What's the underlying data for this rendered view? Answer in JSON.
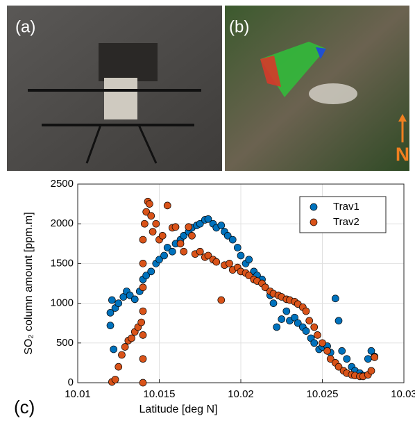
{
  "panels": {
    "a_label": "(a)",
    "b_label": "(b)",
    "north_label": "N",
    "c_label": "(c)"
  },
  "chart_data": {
    "type": "scatter",
    "x_label": "Latitude [deg N]",
    "y_label": "SO₂ column amount [ppm.m]",
    "xlim": [
      10.01,
      10.03
    ],
    "xticks": [
      10.01,
      10.015,
      10.02,
      10.025,
      10.03
    ],
    "ylim": [
      0,
      2500
    ],
    "yticks": [
      0,
      500,
      1000,
      1500,
      2000,
      2500
    ],
    "grid": true,
    "legend": "upper-right",
    "series": [
      {
        "name": "Trav1",
        "color": "#0072bd",
        "x": [
          10.012,
          10.012,
          10.0121,
          10.0122,
          10.0123,
          10.0125,
          10.0128,
          10.013,
          10.0132,
          10.0135,
          10.0138,
          10.014,
          10.0142,
          10.0145,
          10.0148,
          10.015,
          10.0153,
          10.0155,
          10.0158,
          10.016,
          10.0163,
          10.0165,
          10.0168,
          10.017,
          10.0173,
          10.0175,
          10.0178,
          10.018,
          10.0183,
          10.0185,
          10.0188,
          10.019,
          10.0192,
          10.0195,
          10.0198,
          10.02,
          10.0203,
          10.0205,
          10.0208,
          10.021,
          10.0213,
          10.0215,
          10.0218,
          10.022,
          10.0222,
          10.0225,
          10.0228,
          10.023,
          10.0233,
          10.0235,
          10.0238,
          10.024,
          10.0243,
          10.0245,
          10.0248,
          10.025,
          10.0253,
          10.0255,
          10.0258,
          10.026,
          10.0262,
          10.0265,
          10.0268,
          10.027,
          10.0273,
          10.0275,
          10.0278,
          10.028,
          10.0282
        ],
        "values": [
          720,
          880,
          1040,
          420,
          940,
          1000,
          1080,
          1150,
          1100,
          1050,
          1150,
          1300,
          1350,
          1400,
          1500,
          1550,
          1600,
          1700,
          1650,
          1750,
          1800,
          1850,
          1900,
          1950,
          1980,
          2000,
          2050,
          2060,
          2000,
          1950,
          1980,
          1900,
          1850,
          1800,
          1700,
          1600,
          1500,
          1550,
          1400,
          1350,
          1300,
          1200,
          1100,
          1000,
          700,
          800,
          900,
          780,
          820,
          750,
          700,
          650,
          560,
          500,
          420,
          450,
          460,
          380,
          1060,
          780,
          400,
          300,
          200,
          150,
          120,
          90,
          300,
          400,
          330
        ]
      },
      {
        "name": "Trav2",
        "color": "#d95319",
        "x": [
          10.0121,
          10.0123,
          10.0125,
          10.0127,
          10.0129,
          10.0131,
          10.0133,
          10.0135,
          10.0137,
          10.0139,
          10.014,
          10.014,
          10.014,
          10.014,
          10.014,
          10.014,
          10.014,
          10.0141,
          10.0142,
          10.0143,
          10.0144,
          10.0145,
          10.0146,
          10.0148,
          10.015,
          10.0152,
          10.0155,
          10.0158,
          10.016,
          10.0163,
          10.0165,
          10.0168,
          10.017,
          10.0172,
          10.0175,
          10.0178,
          10.018,
          10.0183,
          10.0185,
          10.0188,
          10.019,
          10.0193,
          10.0195,
          10.0198,
          10.02,
          10.0203,
          10.0205,
          10.0208,
          10.021,
          10.0213,
          10.0215,
          10.0218,
          10.022,
          10.0223,
          10.0225,
          10.0228,
          10.023,
          10.0233,
          10.0235,
          10.0238,
          10.024,
          10.0242,
          10.0245,
          10.0247,
          10.025,
          10.0253,
          10.0255,
          10.0258,
          10.026,
          10.0263,
          10.0265,
          10.0268,
          10.027,
          10.0273,
          10.0275,
          10.0278,
          10.028,
          10.0282
        ],
        "values": [
          10,
          40,
          200,
          350,
          450,
          530,
          560,
          640,
          700,
          760,
          0,
          300,
          600,
          900,
          1200,
          1500,
          1800,
          2000,
          2150,
          2280,
          2250,
          2100,
          1900,
          2000,
          1800,
          1850,
          2230,
          1950,
          1960,
          1750,
          1650,
          1960,
          1850,
          1620,
          1650,
          1580,
          1600,
          1550,
          1520,
          1040,
          1480,
          1500,
          1420,
          1450,
          1400,
          1380,
          1350,
          1300,
          1280,
          1250,
          1200,
          1150,
          1120,
          1100,
          1080,
          1050,
          1040,
          1020,
          990,
          950,
          900,
          780,
          700,
          600,
          500,
          400,
          300,
          250,
          200,
          150,
          120,
          100,
          90,
          80,
          80,
          100,
          150,
          320
        ]
      }
    ]
  }
}
